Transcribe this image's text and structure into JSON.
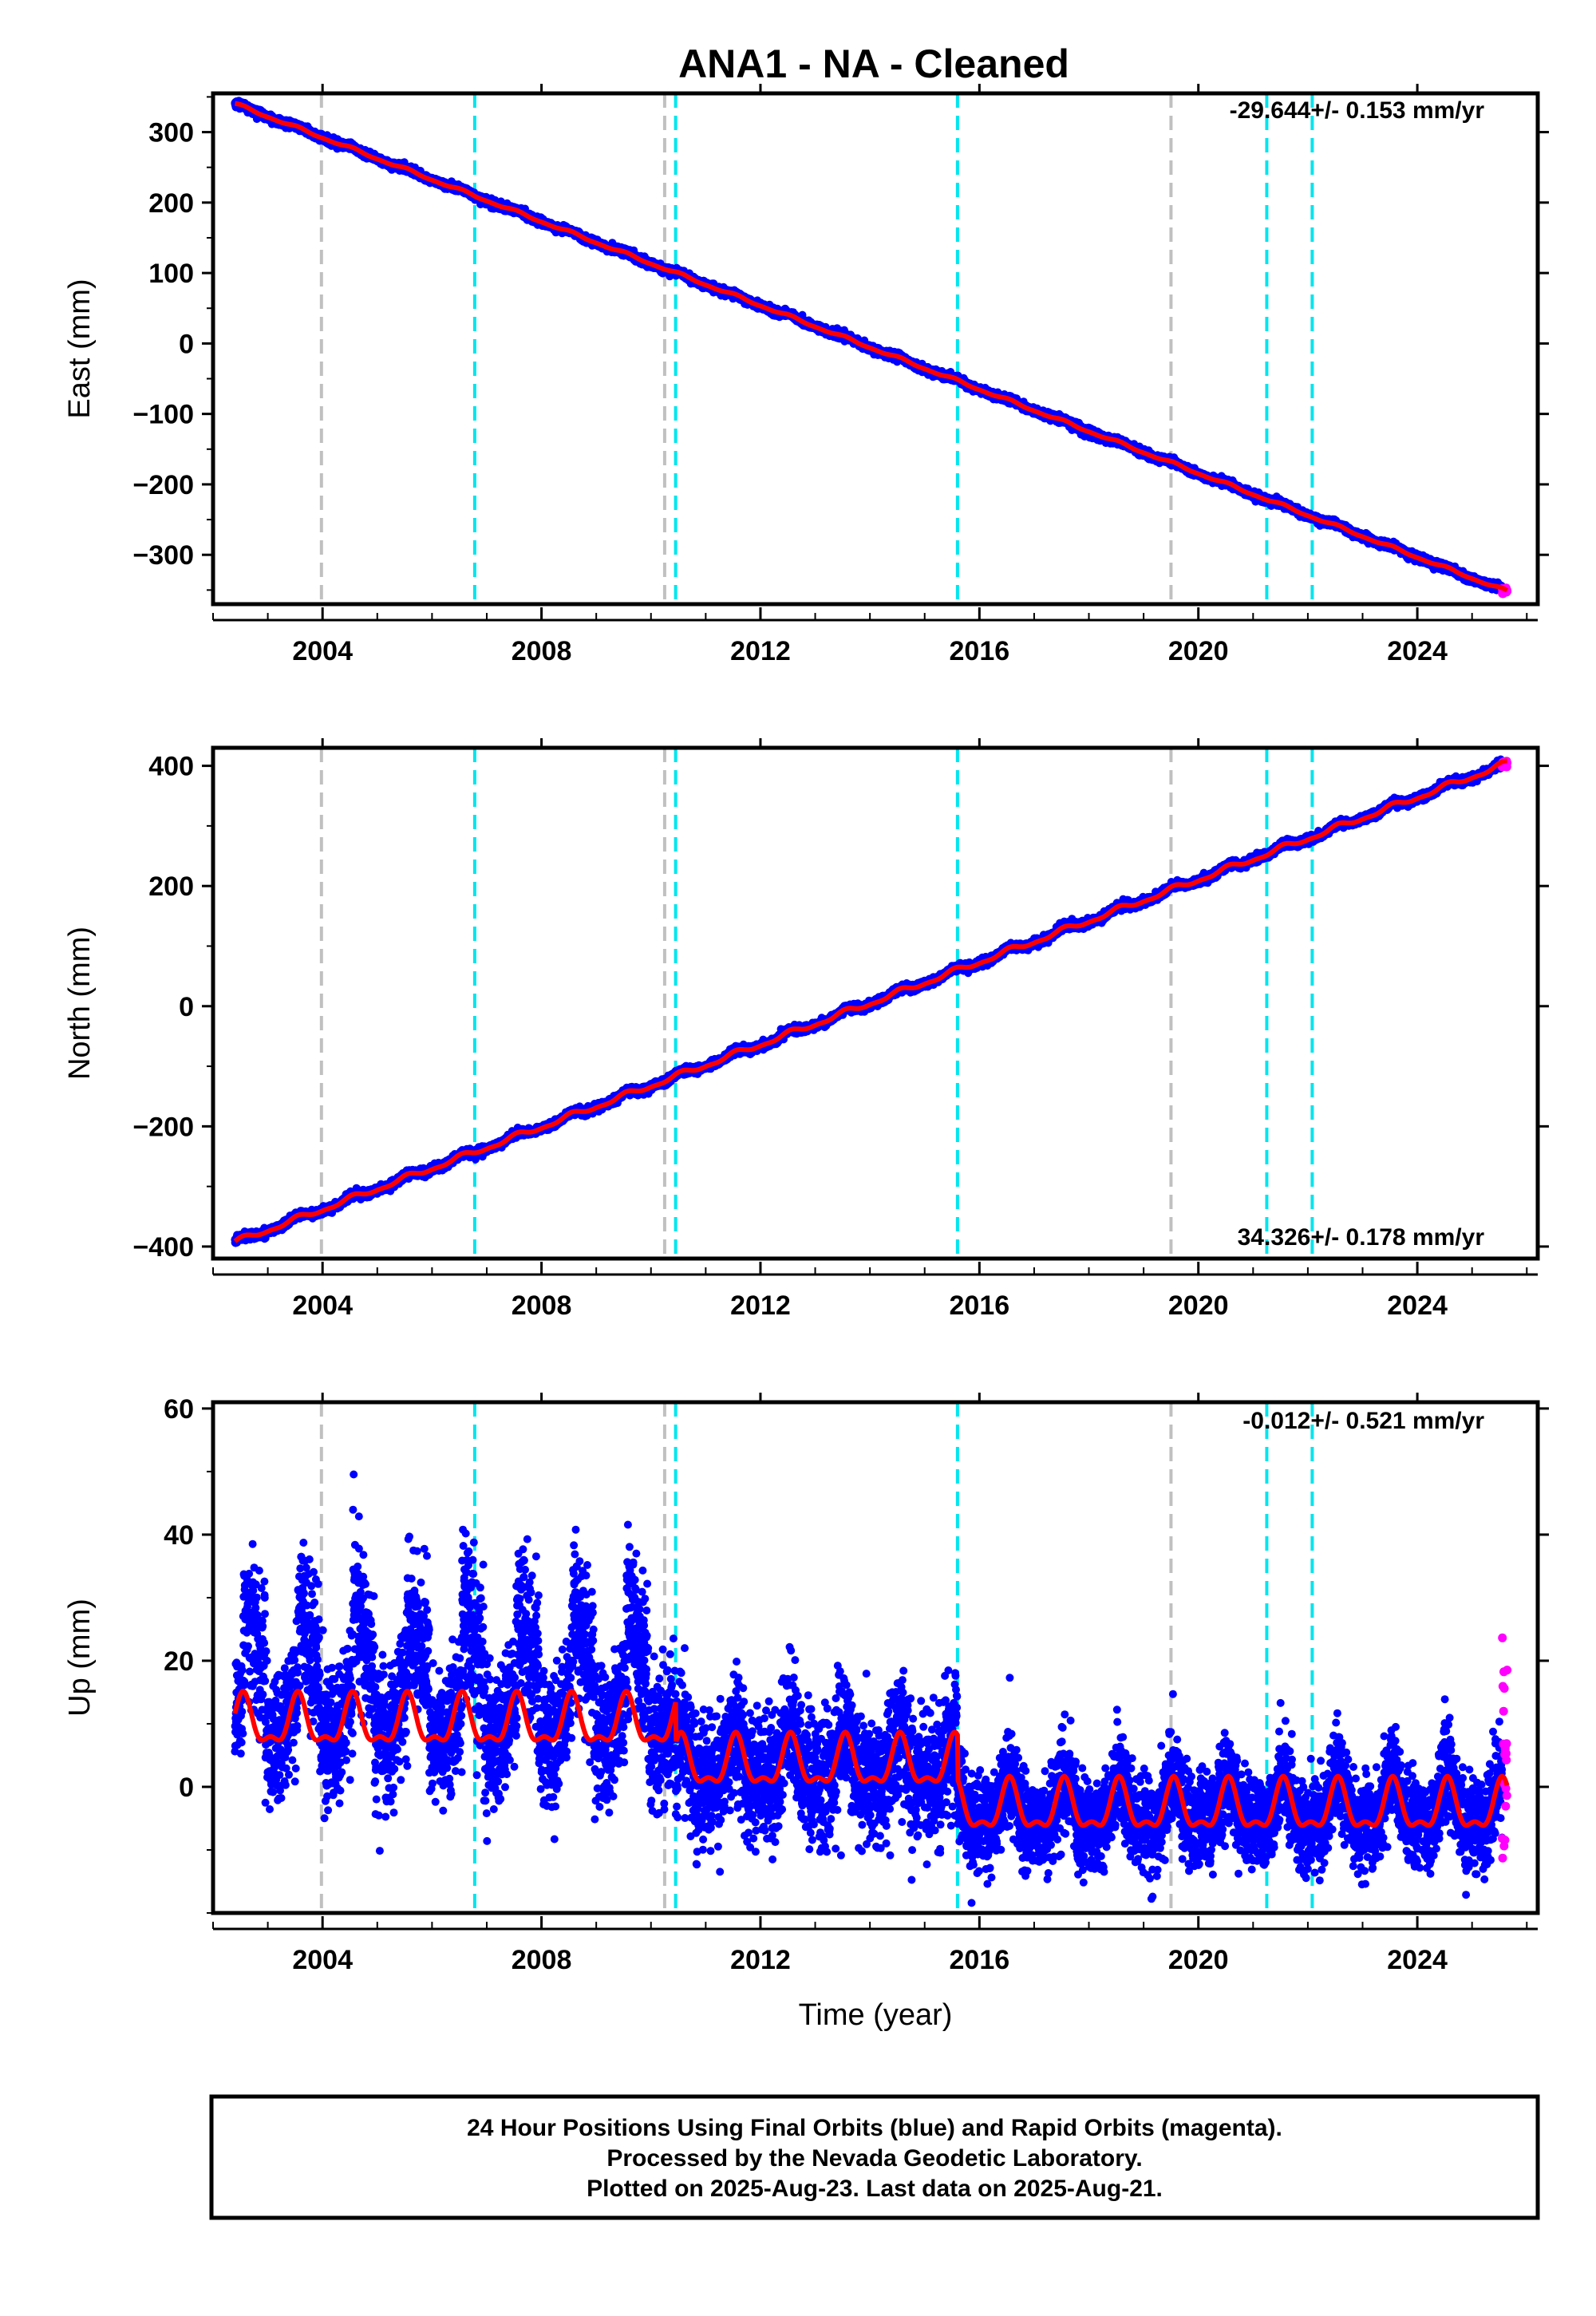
{
  "title": "ANA1  - NA - Cleaned",
  "colors": {
    "final_orbits": "#0000ff",
    "rapid_orbits": "#ff00ff",
    "model": "#ff0000",
    "equipment_change": "#00e5ee",
    "earthquake": "#c0c0c0"
  },
  "chart_data": [
    {
      "type": "scatter",
      "ylabel": "East (mm)",
      "xlabel": "",
      "rate": "-29.644+/- 0.153 mm/yr",
      "xlim": [
        2002.0,
        2026.2
      ],
      "ylim": [
        -370,
        355
      ],
      "yticks": [
        300,
        200,
        100,
        0,
        -100,
        -200,
        -300
      ],
      "ytick_labels": [
        "300",
        "200",
        "100",
        "0",
        "−100",
        "−200",
        "−300"
      ],
      "xticks": [
        2004,
        2008,
        2012,
        2016,
        2020,
        2024
      ],
      "xtick_labels": [
        "2004",
        "2008",
        "2012",
        "2016",
        "2020",
        "2024"
      ],
      "trend": {
        "start": [
          2002.4,
          340
        ],
        "end": [
          2025.64,
          -352
        ]
      },
      "seasonal_amp": 2.0,
      "noise": 2.5,
      "rapid_y_range": [
        -357,
        -347
      ]
    },
    {
      "type": "scatter",
      "ylabel": "North (mm)",
      "xlabel": "",
      "rate": "34.326+/- 0.178 mm/yr",
      "xlim": [
        2002.0,
        2026.2
      ],
      "ylim": [
        -420,
        430
      ],
      "yticks": [
        400,
        200,
        0,
        -200,
        -400
      ],
      "ytick_labels": [
        "400",
        "200",
        "0",
        "−200",
        "−400"
      ],
      "xticks": [
        2004,
        2008,
        2012,
        2016,
        2020,
        2024
      ],
      "xtick_labels": [
        "2004",
        "2008",
        "2012",
        "2016",
        "2020",
        "2024"
      ],
      "trend": {
        "start": [
          2002.4,
          -393
        ],
        "end": [
          2025.64,
          404
        ]
      },
      "seasonal_amp": 5.0,
      "noise": 3.0,
      "rapid_y_range": [
        398,
        408
      ]
    },
    {
      "type": "scatter",
      "ylabel": "Up (mm)",
      "xlabel": "Time (year)",
      "rate": "-0.012+/- 0.521 mm/yr",
      "xlim": [
        2002.0,
        2026.2
      ],
      "ylim": [
        -20,
        61
      ],
      "yticks": [
        60,
        40,
        20,
        0
      ],
      "ytick_labels": [
        "60",
        "40",
        "20",
        "0"
      ],
      "xticks": [
        2004,
        2008,
        2012,
        2016,
        2020,
        2024
      ],
      "xtick_labels": [
        "2004",
        "2008",
        "2012",
        "2016",
        "2020",
        "2024"
      ],
      "mean_segments": [
        {
          "from": 2002.4,
          "to": 2010.45,
          "mean": 10.0
        },
        {
          "from": 2010.45,
          "to": 2015.6,
          "mean": 3.5
        },
        {
          "from": 2015.6,
          "to": 2025.64,
          "mean": -3.5
        }
      ],
      "seasonal_amp": 4.5,
      "noise": 5.0,
      "rapid_y_range": [
        -14,
        24
      ]
    }
  ],
  "events": {
    "equipment": [
      2006.78,
      2010.45,
      2015.6,
      2021.25,
      2022.08
    ],
    "earthquake": [
      2003.98,
      2010.25,
      2019.5
    ]
  },
  "caption": {
    "line1": "24 Hour Positions Using Final Orbits (blue) and Rapid Orbits (magenta).",
    "line2": "Processed by the Nevada Geodetic Laboratory.",
    "line3": "Plotted on 2025-Aug-23. Last data on 2025-Aug-21."
  }
}
